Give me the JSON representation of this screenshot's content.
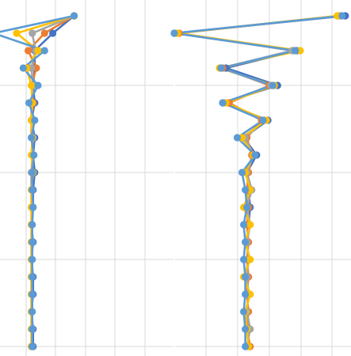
{
  "chart_data": [
    {
      "type": "line",
      "xlim": [
        0,
        11
      ],
      "ylim": [
        0,
        19.5
      ],
      "grid": true,
      "series": [
        {
          "color": "#4472C4",
          "points": [
            [
              4.9,
              0
            ],
            [
              3.6,
              1
            ],
            [
              2.5,
              2
            ],
            [
              2.5,
              3
            ],
            [
              2.4,
              4
            ],
            [
              2.5,
              5
            ],
            [
              2.3,
              6
            ],
            [
              2.5,
              7
            ],
            [
              2.4,
              8
            ],
            [
              2.5,
              9
            ],
            [
              2.4,
              10
            ],
            [
              2.4,
              11
            ],
            [
              2.3,
              12
            ],
            [
              2.4,
              13
            ],
            [
              2.3,
              14
            ],
            [
              2.4,
              15
            ],
            [
              2.4,
              16
            ],
            [
              2.3,
              17
            ],
            [
              2.4,
              18
            ],
            [
              2.4,
              19
            ]
          ]
        },
        {
          "color": "#ED7D31",
          "points": [
            [
              4.9,
              0
            ],
            [
              3.1,
              1
            ],
            [
              2.1,
              2
            ],
            [
              2.6,
              3
            ],
            [
              2.3,
              4
            ],
            [
              2.4,
              5
            ],
            [
              2.3,
              6
            ],
            [
              2.3,
              7
            ],
            [
              2.4,
              8
            ],
            [
              2.3,
              9
            ],
            [
              2.3,
              10
            ],
            [
              2.3,
              11
            ],
            [
              2.3,
              12
            ],
            [
              2.3,
              13
            ],
            [
              2.3,
              14
            ],
            [
              2.3,
              15
            ],
            [
              2.3,
              16
            ],
            [
              2.3,
              17
            ],
            [
              2.3,
              18
            ],
            [
              2.3,
              19
            ]
          ]
        },
        {
          "color": "#A5A5A5",
          "points": [
            [
              4.9,
              0
            ],
            [
              2.35,
              1
            ],
            [
              2.55,
              2
            ],
            [
              2.3,
              3
            ],
            [
              2.4,
              4
            ],
            [
              2.3,
              5
            ],
            [
              2.3,
              6
            ],
            [
              2.4,
              7
            ],
            [
              2.35,
              8
            ],
            [
              2.3,
              9
            ],
            [
              2.3,
              10
            ],
            [
              2.3,
              11
            ],
            [
              2.3,
              12
            ],
            [
              2.35,
              13
            ],
            [
              2.3,
              14
            ],
            [
              2.3,
              15
            ],
            [
              2.3,
              16
            ],
            [
              2.3,
              17
            ],
            [
              2.35,
              18
            ],
            [
              2.3,
              19
            ]
          ]
        },
        {
          "color": "#FFC000",
          "points": [
            [
              4.9,
              0
            ],
            [
              1.4,
              1
            ],
            [
              2.7,
              2
            ],
            [
              2.0,
              3
            ],
            [
              2.3,
              4
            ],
            [
              2.35,
              5
            ],
            [
              2.3,
              6
            ],
            [
              2.35,
              7
            ],
            [
              2.3,
              8
            ],
            [
              2.4,
              9
            ],
            [
              2.3,
              10
            ],
            [
              2.3,
              11
            ],
            [
              2.3,
              12
            ],
            [
              2.3,
              13
            ],
            [
              2.3,
              14
            ],
            [
              2.3,
              15
            ],
            [
              2.3,
              16
            ],
            [
              2.3,
              17
            ],
            [
              2.3,
              18
            ],
            [
              2.3,
              19
            ]
          ]
        },
        {
          "color": "#5B9BD5",
          "points": [
            [
              4.9,
              0
            ],
            [
              0.0,
              1
            ],
            [
              3.1,
              2
            ],
            [
              1.8,
              3
            ],
            [
              2.7,
              4
            ],
            [
              2.15,
              5
            ],
            [
              2.5,
              6
            ],
            [
              2.3,
              7
            ],
            [
              2.45,
              8
            ],
            [
              2.35,
              9
            ],
            [
              2.35,
              10
            ],
            [
              2.4,
              11
            ],
            [
              2.35,
              12
            ],
            [
              2.35,
              13
            ],
            [
              2.35,
              14
            ],
            [
              2.35,
              15
            ],
            [
              2.35,
              16
            ],
            [
              2.35,
              17
            ],
            [
              2.35,
              18
            ],
            [
              2.35,
              19
            ]
          ]
        }
      ]
    },
    {
      "type": "line",
      "xlim": [
        0,
        11
      ],
      "ylim": [
        0,
        19.5
      ],
      "grid": true,
      "series": [
        {
          "color": "#4472C4",
          "points": [
            [
              10.6,
              0
            ],
            [
              0.0,
              1
            ],
            [
              7.6,
              2
            ],
            [
              3.2,
              3
            ],
            [
              6.4,
              4
            ],
            [
              3.0,
              5
            ],
            [
              5.8,
              6
            ],
            [
              4.3,
              7
            ],
            [
              5.1,
              8
            ],
            [
              4.5,
              9
            ],
            [
              4.6,
              10
            ],
            [
              4.7,
              11
            ],
            [
              4.6,
              12
            ],
            [
              4.5,
              13
            ],
            [
              4.6,
              14
            ],
            [
              4.5,
              15
            ],
            [
              4.6,
              16
            ],
            [
              4.5,
              17
            ],
            [
              4.6,
              18
            ],
            [
              4.6,
              19
            ]
          ]
        },
        {
          "color": "#ED7D31",
          "points": [
            [
              10.2,
              0
            ],
            [
              0.3,
              1
            ],
            [
              7.4,
              2
            ],
            [
              3.0,
              3
            ],
            [
              5.9,
              4
            ],
            [
              3.4,
              5
            ],
            [
              5.4,
              6
            ],
            [
              4.5,
              7
            ],
            [
              4.8,
              8
            ],
            [
              4.6,
              9
            ],
            [
              4.5,
              10
            ],
            [
              4.6,
              11
            ],
            [
              4.5,
              12
            ],
            [
              4.6,
              13
            ],
            [
              4.5,
              14
            ],
            [
              4.6,
              15
            ],
            [
              4.5,
              16
            ],
            [
              4.6,
              17
            ],
            [
              4.5,
              18
            ],
            [
              4.7,
              19
            ]
          ]
        },
        {
          "color": "#A5A5A5",
          "points": [
            [
              10.3,
              0
            ],
            [
              0.2,
              1
            ],
            [
              7.3,
              2
            ],
            [
              2.9,
              3
            ],
            [
              6.0,
              4
            ],
            [
              3.1,
              5
            ],
            [
              5.6,
              6
            ],
            [
              4.4,
              7
            ],
            [
              4.9,
              8
            ],
            [
              4.5,
              9
            ],
            [
              4.8,
              10
            ],
            [
              4.5,
              11
            ],
            [
              4.7,
              12
            ],
            [
              4.5,
              13
            ],
            [
              4.6,
              14
            ],
            [
              4.5,
              15
            ],
            [
              4.6,
              16
            ],
            [
              4.5,
              17
            ],
            [
              4.7,
              18
            ],
            [
              4.5,
              19
            ]
          ]
        },
        {
          "color": "#FFC000",
          "points": [
            [
              10.1,
              0
            ],
            [
              0.2,
              1
            ],
            [
              7.8,
              2
            ],
            [
              2.8,
              3
            ],
            [
              6.2,
              4
            ],
            [
              3.2,
              5
            ],
            [
              5.7,
              6
            ],
            [
              4.2,
              7
            ],
            [
              4.9,
              8
            ],
            [
              4.4,
              9
            ],
            [
              4.7,
              10
            ],
            [
              4.3,
              11
            ],
            [
              4.7,
              12
            ],
            [
              4.4,
              13
            ],
            [
              4.7,
              14
            ],
            [
              4.3,
              15
            ],
            [
              4.7,
              16
            ],
            [
              4.4,
              17
            ],
            [
              4.5,
              18
            ],
            [
              4.6,
              19
            ]
          ]
        },
        {
          "color": "#5B9BD5",
          "points": [
            [
              10.4,
              0
            ],
            [
              0.0,
              1
            ],
            [
              7.5,
              2
            ],
            [
              2.9,
              3
            ],
            [
              6.1,
              4
            ],
            [
              3.0,
              5
            ],
            [
              5.5,
              6
            ],
            [
              3.9,
              7
            ],
            [
              5.0,
              8
            ],
            [
              4.2,
              9
            ],
            [
              4.4,
              10
            ],
            [
              4.5,
              11
            ],
            [
              4.3,
              12
            ],
            [
              4.4,
              13
            ],
            [
              4.3,
              14
            ],
            [
              4.4,
              15
            ],
            [
              4.4,
              16
            ],
            [
              4.3,
              17
            ],
            [
              4.4,
              18
            ],
            [
              4.4,
              19
            ]
          ]
        }
      ]
    }
  ]
}
